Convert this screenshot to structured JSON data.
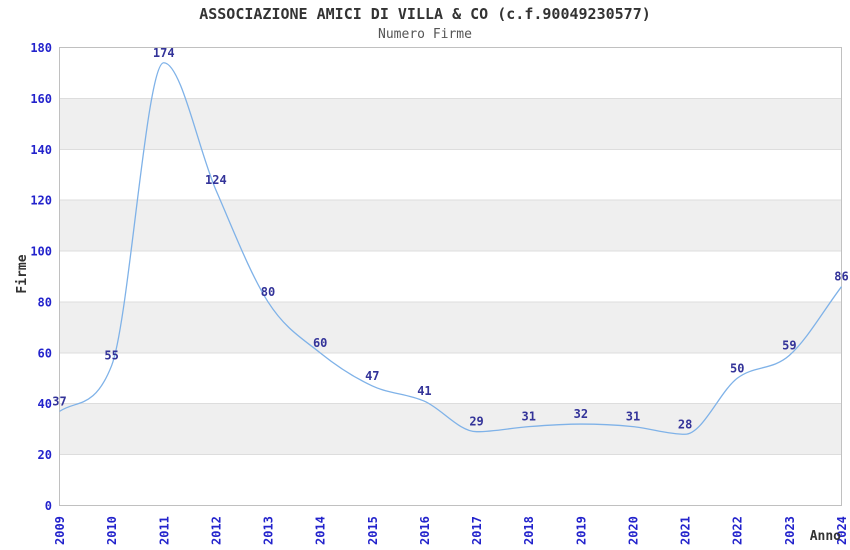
{
  "header": {
    "title": "ASSOCIAZIONE AMICI DI VILLA & CO (c.f.90049230577)",
    "subtitle": "Numero Firme"
  },
  "chart_data": {
    "type": "line",
    "title": "ASSOCIAZIONE AMICI DI VILLA & CO (c.f.90049230577)",
    "subtitle": "Numero Firme",
    "xlabel": "Anno",
    "ylabel": "Firme",
    "categories": [
      "2009",
      "2010",
      "2011",
      "2012",
      "2013",
      "2014",
      "2015",
      "2016",
      "2017",
      "2018",
      "2019",
      "2020",
      "2021",
      "2022",
      "2023",
      "2024"
    ],
    "values": [
      37,
      55,
      174,
      124,
      80,
      60,
      47,
      41,
      29,
      31,
      32,
      31,
      28,
      50,
      59,
      86
    ],
    "yticks": [
      0,
      20,
      40,
      60,
      80,
      100,
      120,
      140,
      160,
      180
    ],
    "ylim": [
      0,
      180
    ],
    "grid": "horizontal-bands-alternating",
    "legend": "none",
    "data_labels": true,
    "colors": {
      "line": "#7fb2e8",
      "tick_label": "#2323cc",
      "data_label": "#333399",
      "band_gray": "#efefef",
      "band_white": "#ffffff",
      "grid_line": "#dddddd",
      "plot_border": "#c0c0c0",
      "title": "#333333",
      "subtitle": "#555555",
      "axis_title": "#333333",
      "background": "#ffffff"
    }
  }
}
